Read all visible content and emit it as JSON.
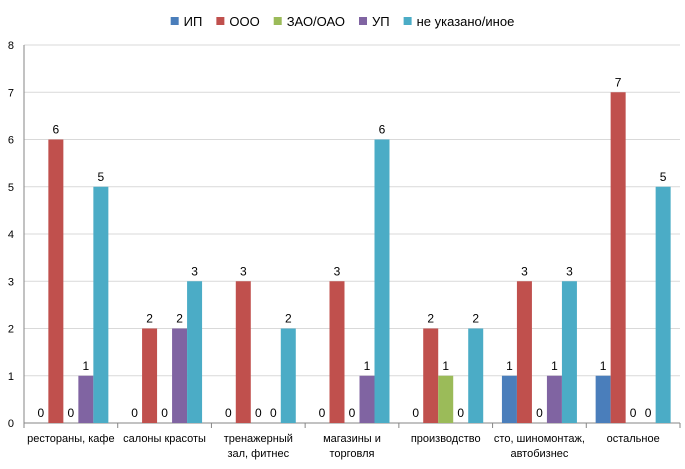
{
  "chart_data": {
    "type": "bar",
    "title": "",
    "xlabel": "",
    "ylabel": "",
    "ylim": [
      0,
      8
    ],
    "yticks": [
      0,
      1,
      2,
      3,
      4,
      5,
      6,
      7,
      8
    ],
    "grid": true,
    "legend": "top",
    "categories": [
      [
        "рестораны, кафе"
      ],
      [
        "салоны красоты"
      ],
      [
        "тренажерный",
        "зал, фитнес"
      ],
      [
        "магазины и",
        "торговля"
      ],
      [
        "производство"
      ],
      [
        "сто, шиномонтаж,",
        "автобизнес"
      ],
      [
        "остальное"
      ]
    ],
    "series": [
      {
        "name": "ИП",
        "color": "#4a7ebb",
        "values": [
          0,
          0,
          0,
          0,
          0,
          1,
          1
        ]
      },
      {
        "name": "ООО",
        "color": "#c0504d",
        "values": [
          6,
          2,
          3,
          3,
          2,
          3,
          7
        ]
      },
      {
        "name": "ЗАО/ОАО",
        "color": "#9bbb59",
        "values": [
          0,
          0,
          0,
          0,
          1,
          0,
          0
        ]
      },
      {
        "name": "УП",
        "color": "#8064a2",
        "values": [
          1,
          2,
          0,
          1,
          0,
          1,
          0
        ]
      },
      {
        "name": "не указано/иное",
        "color": "#4bacc6",
        "values": [
          5,
          3,
          2,
          6,
          2,
          3,
          5
        ]
      }
    ]
  }
}
